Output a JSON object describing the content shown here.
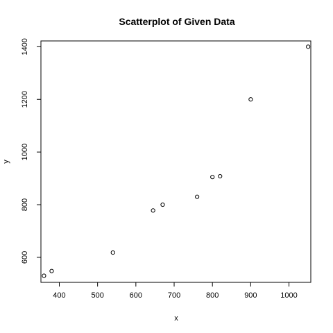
{
  "chart_data": {
    "type": "scatter",
    "title": "Scatterplot of Given Data",
    "xlabel": "x",
    "ylabel": "y",
    "xlim": [
      352,
      1057
    ],
    "ylim": [
      505,
      1422
    ],
    "xticks": [
      400,
      500,
      600,
      700,
      800,
      900,
      1000
    ],
    "yticks": [
      600,
      800,
      1000,
      1200,
      1400
    ],
    "grid": false,
    "marker": "open-circle",
    "points": [
      {
        "x": 360,
        "y": 530
      },
      {
        "x": 380,
        "y": 548
      },
      {
        "x": 540,
        "y": 618
      },
      {
        "x": 645,
        "y": 778
      },
      {
        "x": 670,
        "y": 800
      },
      {
        "x": 760,
        "y": 830
      },
      {
        "x": 800,
        "y": 905
      },
      {
        "x": 820,
        "y": 908
      },
      {
        "x": 900,
        "y": 1200
      },
      {
        "x": 1050,
        "y": 1400
      }
    ]
  }
}
